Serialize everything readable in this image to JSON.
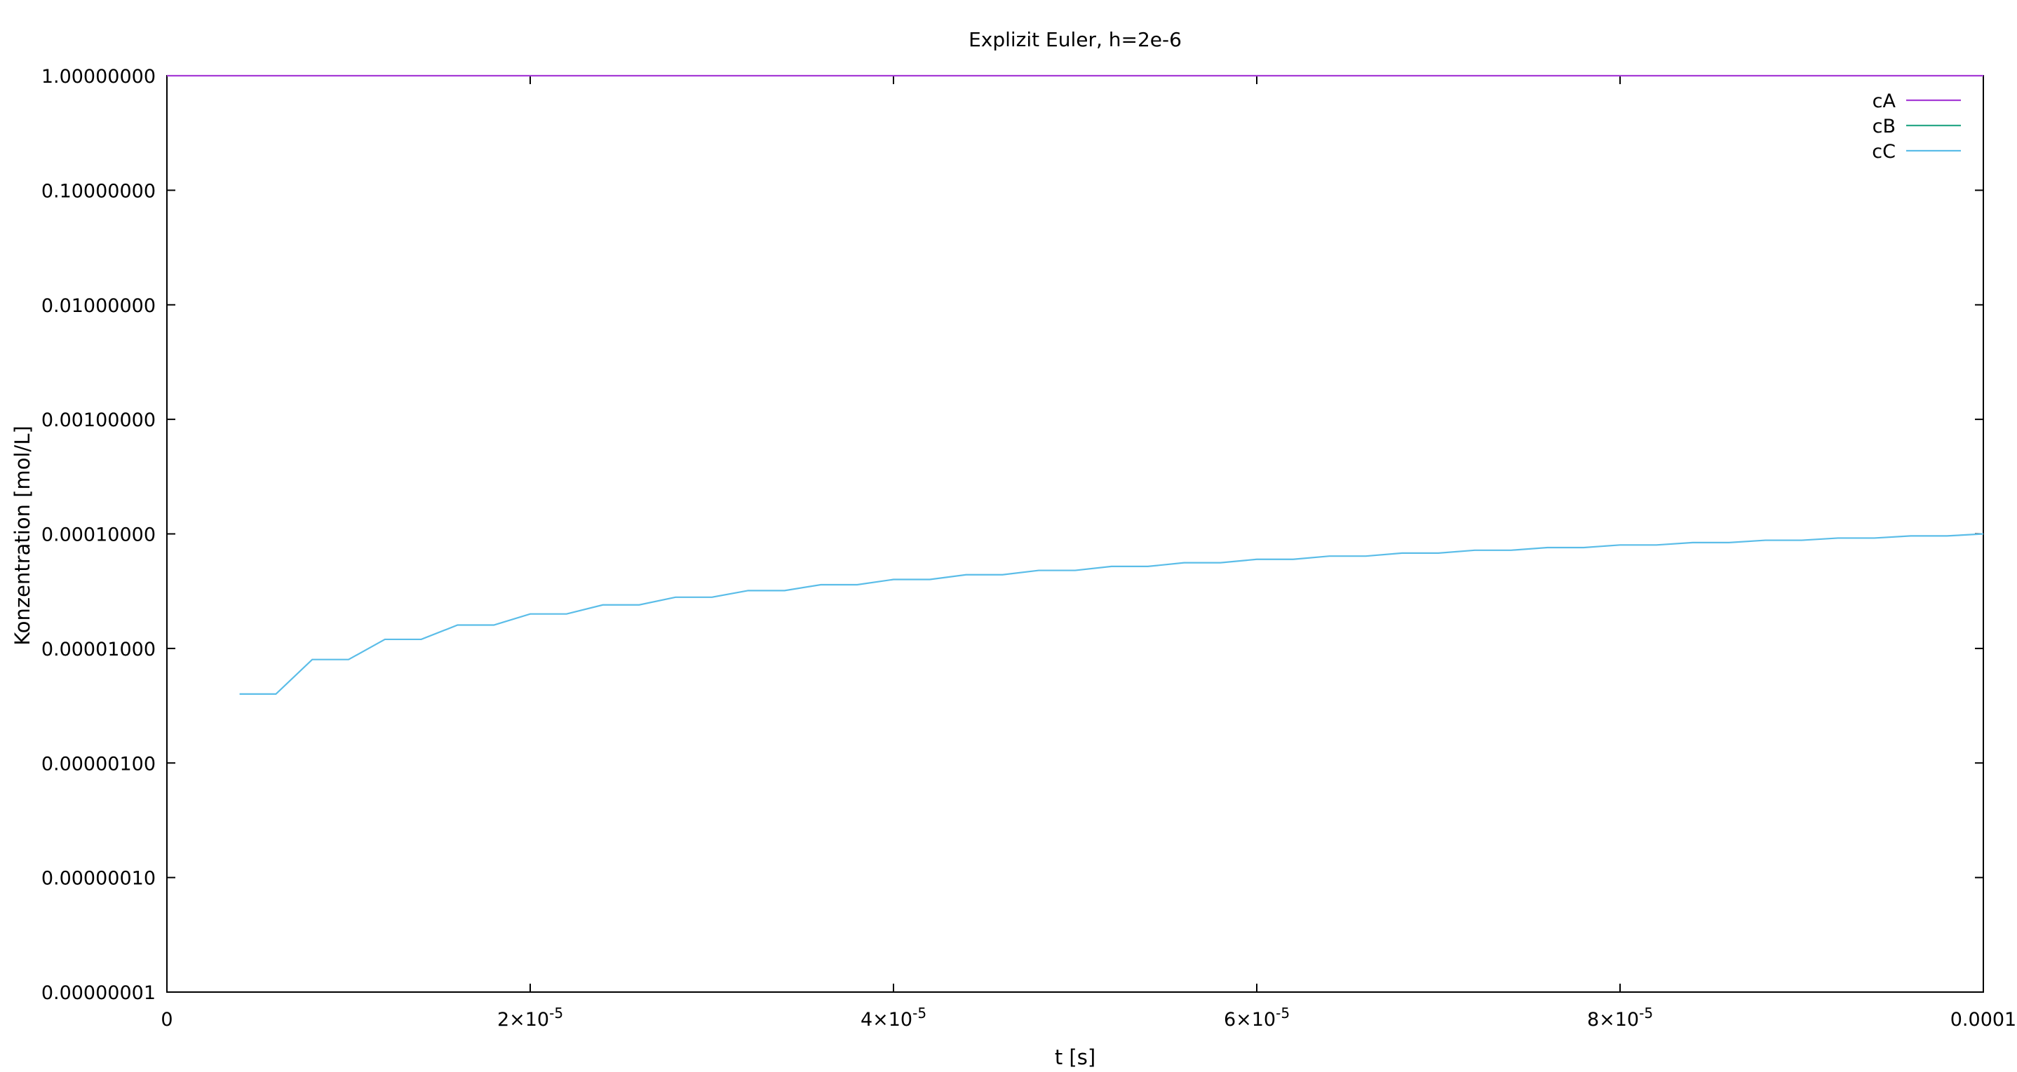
{
  "chart_data": {
    "type": "line",
    "title": "Explizit Euler, h=2e-6",
    "xlabel": "t [s]",
    "ylabel": "Konzentration [mol/L]",
    "x_scale": "linear",
    "y_scale": "log",
    "xlim": [
      0,
      0.0001
    ],
    "ylim": [
      1e-08,
      1
    ],
    "grid": false,
    "legend_position": "top-right",
    "x_ticks": [
      {
        "value": 0,
        "label": "0"
      },
      {
        "value": 2e-05,
        "label_base": "2×10",
        "label_exp": "-5"
      },
      {
        "value": 4e-05,
        "label_base": "4×10",
        "label_exp": "-5"
      },
      {
        "value": 6e-05,
        "label_base": "6×10",
        "label_exp": "-5"
      },
      {
        "value": 8e-05,
        "label_base": "8×10",
        "label_exp": "-5"
      },
      {
        "value": 0.0001,
        "label": "0.0001"
      }
    ],
    "y_ticks": [
      {
        "value": 1,
        "label": "1.00000000"
      },
      {
        "value": 0.1,
        "label": "0.10000000"
      },
      {
        "value": 0.01,
        "label": "0.01000000"
      },
      {
        "value": 0.001,
        "label": "0.00100000"
      },
      {
        "value": 0.0001,
        "label": "0.00010000"
      },
      {
        "value": 1e-05,
        "label": "0.00001000"
      },
      {
        "value": 1e-06,
        "label": "0.00000100"
      },
      {
        "value": 1e-07,
        "label": "0.00000010"
      },
      {
        "value": 1e-08,
        "label": "0.00000001"
      }
    ],
    "series": [
      {
        "name": "cA",
        "color": "#a53bd6",
        "x": [
          0,
          0.0001
        ],
        "y": [
          0.9999,
          0.9999
        ]
      },
      {
        "name": "cB",
        "color": "#2aa888",
        "x": [],
        "y": []
      },
      {
        "name": "cC",
        "color": "#5bbde8",
        "x": [
          4e-06,
          6e-06,
          8e-06,
          1e-05,
          1.2e-05,
          1.4e-05,
          1.6e-05,
          1.8e-05,
          2e-05,
          2.2e-05,
          2.4e-05,
          2.6e-05,
          2.8e-05,
          3e-05,
          3.2e-05,
          3.4e-05,
          3.6e-05,
          3.8e-05,
          4e-05,
          4.2e-05,
          4.4e-05,
          4.6e-05,
          4.8e-05,
          5e-05,
          5.2e-05,
          5.4e-05,
          5.6e-05,
          5.8e-05,
          6e-05,
          6.2e-05,
          6.4e-05,
          6.6e-05,
          6.8e-05,
          7e-05,
          7.2e-05,
          7.4e-05,
          7.6e-05,
          7.8e-05,
          8e-05,
          8.2e-05,
          8.4e-05,
          8.6e-05,
          8.8e-05,
          9e-05,
          9.2e-05,
          9.4e-05,
          9.6e-05,
          9.8e-05,
          0.0001
        ],
        "y": [
          4e-06,
          4e-06,
          8e-06,
          8e-06,
          1.2e-05,
          1.2e-05,
          1.6e-05,
          1.6e-05,
          2e-05,
          2e-05,
          2.4e-05,
          2.4e-05,
          2.8e-05,
          2.8e-05,
          3.2e-05,
          3.2e-05,
          3.6e-05,
          3.6e-05,
          4e-05,
          4e-05,
          4.4e-05,
          4.4e-05,
          4.8e-05,
          4.8e-05,
          5.2e-05,
          5.2e-05,
          5.6e-05,
          5.6e-05,
          6e-05,
          6e-05,
          6.4e-05,
          6.4e-05,
          6.8e-05,
          6.8e-05,
          7.2e-05,
          7.2e-05,
          7.6e-05,
          7.6e-05,
          8e-05,
          8e-05,
          8.4e-05,
          8.4e-05,
          8.8e-05,
          8.8e-05,
          9.2e-05,
          9.2e-05,
          9.6e-05,
          9.6e-05,
          0.0001
        ]
      }
    ]
  }
}
